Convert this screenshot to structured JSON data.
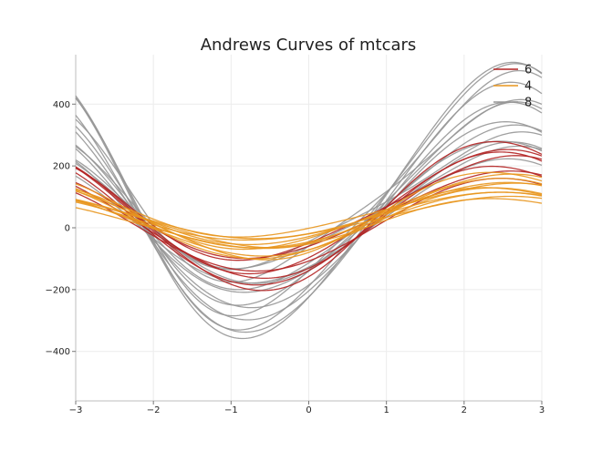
{
  "chart_data": {
    "type": "line",
    "title": "Andrews Curves of mtcars",
    "xlabel": "",
    "ylabel": "",
    "xlim": [
      -3,
      3
    ],
    "ylim": [
      -560,
      560
    ],
    "x_ticks": [
      -3,
      -2,
      -1,
      0,
      1,
      2,
      3
    ],
    "y_ticks": [
      -400,
      -200,
      0,
      200,
      400
    ],
    "grid": true,
    "legend_position": "top-right",
    "groups": [
      {
        "name": "6",
        "color": "#b22222"
      },
      {
        "name": "4",
        "color": "#e8961e"
      },
      {
        "name": "8",
        "color": "#969696"
      }
    ],
    "curve_model": "f(t) = a + b*sin(t - 0.9) + c*cos(2t)",
    "series": [
      {
        "group": "8",
        "a": 80,
        "b": 440,
        "c": 40
      },
      {
        "group": "8",
        "a": 90,
        "b": 420,
        "c": 50
      },
      {
        "group": "8",
        "a": 60,
        "b": 400,
        "c": 30
      },
      {
        "group": "8",
        "a": 100,
        "b": 380,
        "c": 60
      },
      {
        "group": "8",
        "a": 50,
        "b": 350,
        "c": 20
      },
      {
        "group": "8",
        "a": 70,
        "b": 320,
        "c": 40
      },
      {
        "group": "8",
        "a": 40,
        "b": 300,
        "c": 10
      },
      {
        "group": "8",
        "a": 110,
        "b": 280,
        "c": 50
      },
      {
        "group": "8",
        "a": 60,
        "b": 260,
        "c": 30
      },
      {
        "group": "8",
        "a": 30,
        "b": 240,
        "c": 20
      },
      {
        "group": "8",
        "a": 50,
        "b": 230,
        "c": 0
      },
      {
        "group": "8",
        "a": 80,
        "b": 210,
        "c": 40
      },
      {
        "group": "8",
        "a": 20,
        "b": 200,
        "c": 10
      },
      {
        "group": "8",
        "a": 60,
        "b": 190,
        "c": 30
      },
      {
        "group": "6",
        "a": 40,
        "b": 240,
        "c": -10
      },
      {
        "group": "6",
        "a": 30,
        "b": 215,
        "c": 0
      },
      {
        "group": "6",
        "a": 50,
        "b": 200,
        "c": 10
      },
      {
        "group": "6",
        "a": 20,
        "b": 180,
        "c": -10
      },
      {
        "group": "6",
        "a": 60,
        "b": 165,
        "c": 20
      },
      {
        "group": "6",
        "a": 10,
        "b": 150,
        "c": 0
      },
      {
        "group": "6",
        "a": 40,
        "b": 140,
        "c": 10
      },
      {
        "group": "4",
        "a": 40,
        "b": 140,
        "c": -10
      },
      {
        "group": "4",
        "a": 30,
        "b": 130,
        "c": 0
      },
      {
        "group": "4",
        "a": 50,
        "b": 120,
        "c": 10
      },
      {
        "group": "4",
        "a": 20,
        "b": 110,
        "c": -5
      },
      {
        "group": "4",
        "a": 45,
        "b": 100,
        "c": 5
      },
      {
        "group": "4",
        "a": 35,
        "b": 95,
        "c": -10
      },
      {
        "group": "4",
        "a": 25,
        "b": 90,
        "c": 0
      },
      {
        "group": "4",
        "a": 55,
        "b": 85,
        "c": 10
      },
      {
        "group": "4",
        "a": 15,
        "b": 80,
        "c": -5
      },
      {
        "group": "4",
        "a": 40,
        "b": 75,
        "c": 0
      },
      {
        "group": "4",
        "a": 30,
        "b": 70,
        "c": 5
      }
    ]
  }
}
